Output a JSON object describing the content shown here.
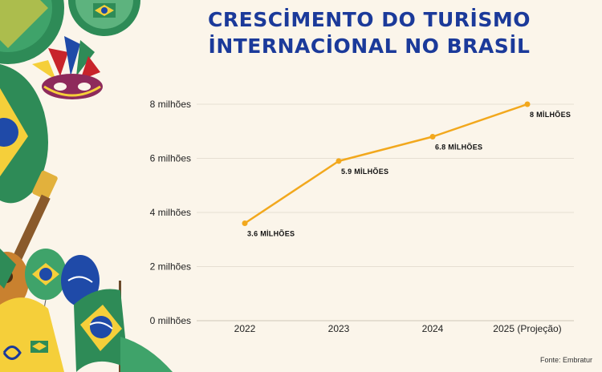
{
  "title": {
    "line1": "CRESCİMENTO DO TURİSMO",
    "line2": "İNTERNACİONAL NO BRASİL"
  },
  "source": "Fonte: Embratur",
  "colors": {
    "background": "#FBF5EA",
    "title": "#1B3A9A",
    "line": "#F2A81D",
    "grid": "#E6DFD2",
    "green": "#2E8B57",
    "yellow": "#F5CF3A",
    "blue": "#1F4AA8"
  },
  "decor_icons": [
    "brazil-flag-fan-icon",
    "carnival-mask-icon",
    "guitar-icon",
    "brazil-flag-balloon-icon",
    "brazil-flag-icon",
    "jersey-icon"
  ],
  "chart_data": {
    "type": "line",
    "categories": [
      "2022",
      "2023",
      "2024",
      "2025 (Projeção)"
    ],
    "series": [
      {
        "values": [
          3.6,
          5.9,
          6.8,
          8
        ]
      }
    ],
    "point_labels": [
      "3.6 MİLHÕES",
      "5.9 MİLHÕES",
      "6.8 MİLHÕES",
      "8 MİLHÕES"
    ],
    "yticks": [
      0,
      2,
      4,
      6,
      8
    ],
    "ytick_labels": [
      "0 milhões",
      "2 milhões",
      "4 milhões",
      "6 milhões",
      "8 milhões"
    ],
    "ylim": [
      0,
      8
    ],
    "xlabel": "",
    "ylabel": "",
    "grid": true,
    "legend": "none"
  }
}
